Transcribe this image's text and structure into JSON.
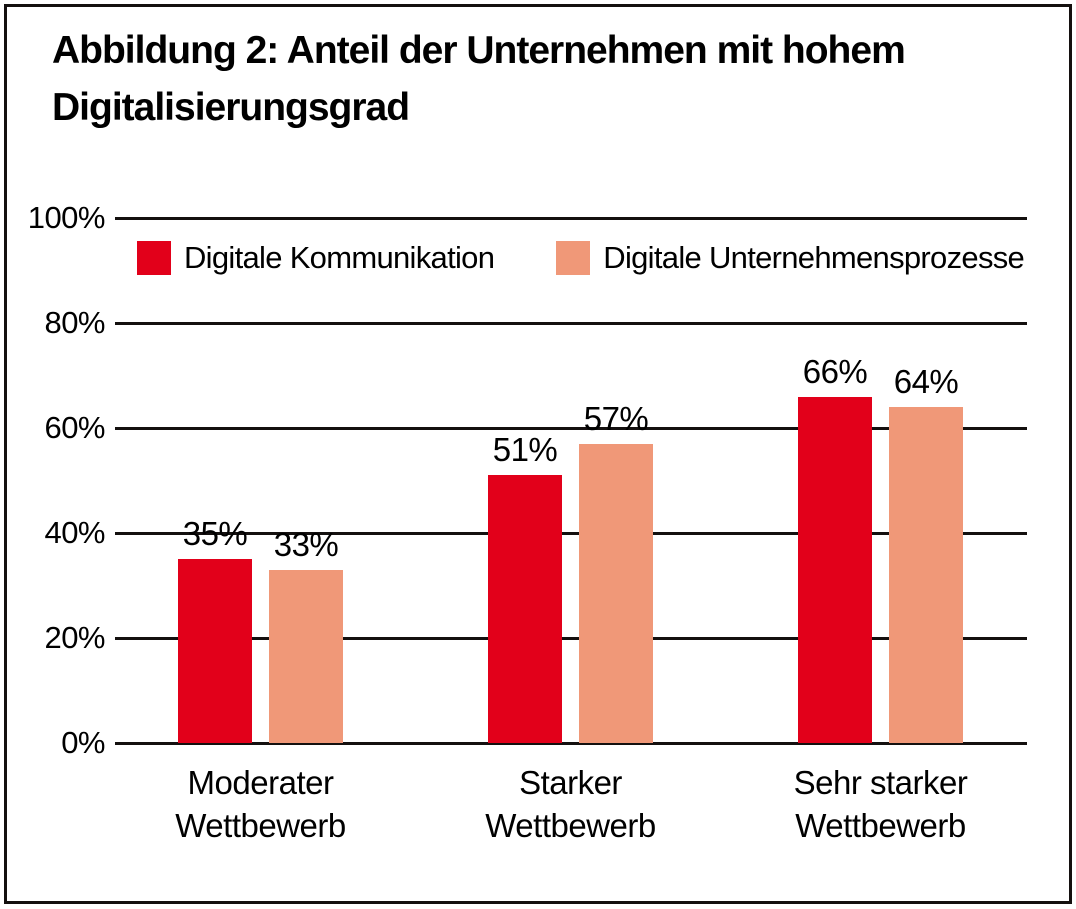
{
  "title": [
    "Abbildung 2: Anteil der Unternehmen mit hohem",
    "Digitalisierungsgrad"
  ],
  "chart_data": {
    "type": "bar",
    "title": "Abbildung 2: Anteil der Unternehmen mit hohem Digitalisierungsgrad",
    "categories": [
      "Moderater Wettbewerb",
      "Starker Wettbewerb",
      "Sehr starker Wettbewerb"
    ],
    "series": [
      {
        "name": "Digitale Kommunikation",
        "color": "#e2001a",
        "values": [
          35,
          51,
          66
        ]
      },
      {
        "name": "Digitale Unternehmensprozesse",
        "color": "#f09878",
        "values": [
          33,
          57,
          64
        ]
      }
    ],
    "value_suffix": "%",
    "xlabel": "",
    "ylabel": "",
    "ylim": [
      0,
      100
    ],
    "yticks": [
      {
        "value": 0,
        "label": "0%"
      },
      {
        "value": 20,
        "label": "20%"
      },
      {
        "value": 40,
        "label": "40%"
      },
      {
        "value": 60,
        "label": "60%"
      },
      {
        "value": 80,
        "label": "80%"
      },
      {
        "value": 100,
        "label": "100%"
      }
    ],
    "grid": true,
    "legend_position": "inside-top-left"
  },
  "colors": {
    "background": "#ffffff",
    "text": "#000000",
    "grid": "#14100f",
    "frame": "#14100f",
    "series_1": "#e2001a",
    "series_2": "#f09878"
  }
}
